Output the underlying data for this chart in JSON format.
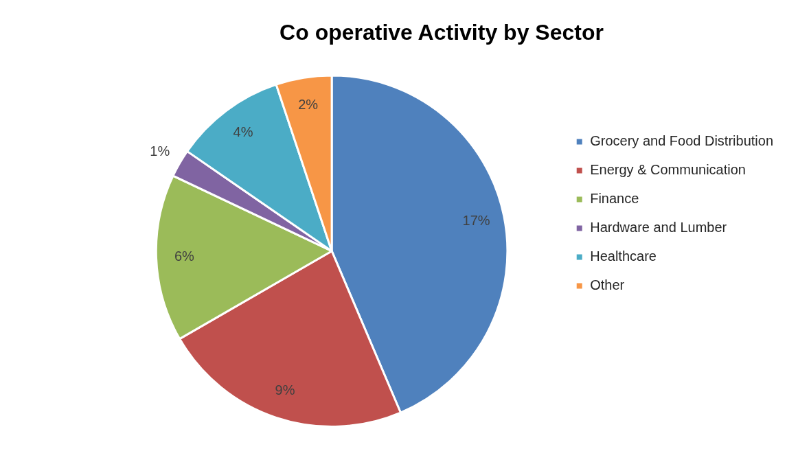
{
  "chart_data": {
    "type": "pie",
    "title": "Co operative Activity by Sector",
    "categories": [
      "Grocery and Food Distribution",
      "Energy & Communication",
      "Finance",
      "Hardware and Lumber",
      "Healthcare",
      "Other"
    ],
    "values": [
      17,
      9,
      6,
      1,
      4,
      2
    ],
    "colors": [
      "#4f81bd",
      "#c0504d",
      "#9bbb59",
      "#8064a2",
      "#4bacc6",
      "#f79646"
    ],
    "value_labels": [
      "17%",
      "9%",
      "6%",
      "1%",
      "4%",
      "2%"
    ],
    "legend": "right"
  }
}
